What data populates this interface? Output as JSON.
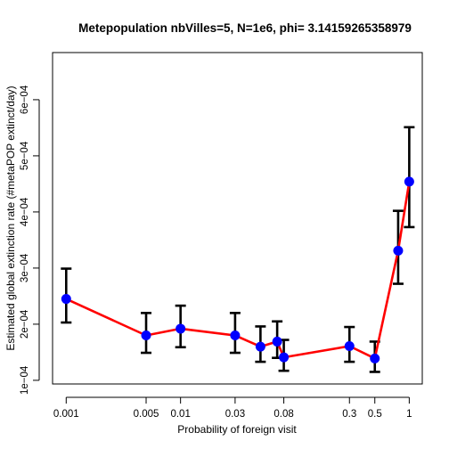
{
  "chart_data": {
    "type": "line",
    "title": "Metepopulation nbVilles=5, N=1e6, phi= 3.14159265358979",
    "xlabel": "Probability of foreign visit",
    "ylabel": "Estimated global extinction rate (#metaPOP extinct/day)",
    "x_scale": "log",
    "xlim": [
      0.00076,
      1.3
    ],
    "ylim": [
      9.35e-05,
      0.000684
    ],
    "x_ticks": [
      {
        "value": 0.001,
        "label": "0.001"
      },
      {
        "value": 0.005,
        "label": "0.005"
      },
      {
        "value": 0.01,
        "label": "0.01"
      },
      {
        "value": 0.03,
        "label": "0.03"
      },
      {
        "value": 0.08,
        "label": "0.08"
      },
      {
        "value": 0.3,
        "label": "0.3"
      },
      {
        "value": 0.5,
        "label": "0.5"
      },
      {
        "value": 1,
        "label": "1"
      }
    ],
    "y_ticks": [
      {
        "value": 0.0001,
        "label": "1e−04"
      },
      {
        "value": 0.0002,
        "label": "2e−04"
      },
      {
        "value": 0.0003,
        "label": "3e−04"
      },
      {
        "value": 0.0004,
        "label": "4e−04"
      },
      {
        "value": 0.0005,
        "label": "5e−04"
      },
      {
        "value": 0.0006,
        "label": "6e−04"
      }
    ],
    "points": [
      {
        "x": 0.001,
        "y": 0.000245,
        "lo": 0.000203,
        "hi": 0.000299
      },
      {
        "x": 0.005,
        "y": 0.00018,
        "lo": 0.000149,
        "hi": 0.00022
      },
      {
        "x": 0.01,
        "y": 0.000192,
        "lo": 0.000159,
        "hi": 0.000233
      },
      {
        "x": 0.03,
        "y": 0.00018,
        "lo": 0.000149,
        "hi": 0.00022
      },
      {
        "x": 0.05,
        "y": 0.00016,
        "lo": 0.000133,
        "hi": 0.000196
      },
      {
        "x": 0.07,
        "y": 0.000169,
        "lo": 0.00014,
        "hi": 0.000205
      },
      {
        "x": 0.08,
        "y": 0.000141,
        "lo": 0.000117,
        "hi": 0.000172
      },
      {
        "x": 0.3,
        "y": 0.000161,
        "lo": 0.000133,
        "hi": 0.000195
      },
      {
        "x": 0.5,
        "y": 0.000139,
        "lo": 0.000115,
        "hi": 0.000169
      },
      {
        "x": 0.8,
        "y": 0.000331,
        "lo": 0.000272,
        "hi": 0.000402
      },
      {
        "x": 1,
        "y": 0.000454,
        "lo": 0.000373,
        "hi": 0.000551
      }
    ],
    "grid": false,
    "line_color": "#ff0000",
    "point_color": "#0000ff",
    "errorbar_color": "#000000"
  }
}
